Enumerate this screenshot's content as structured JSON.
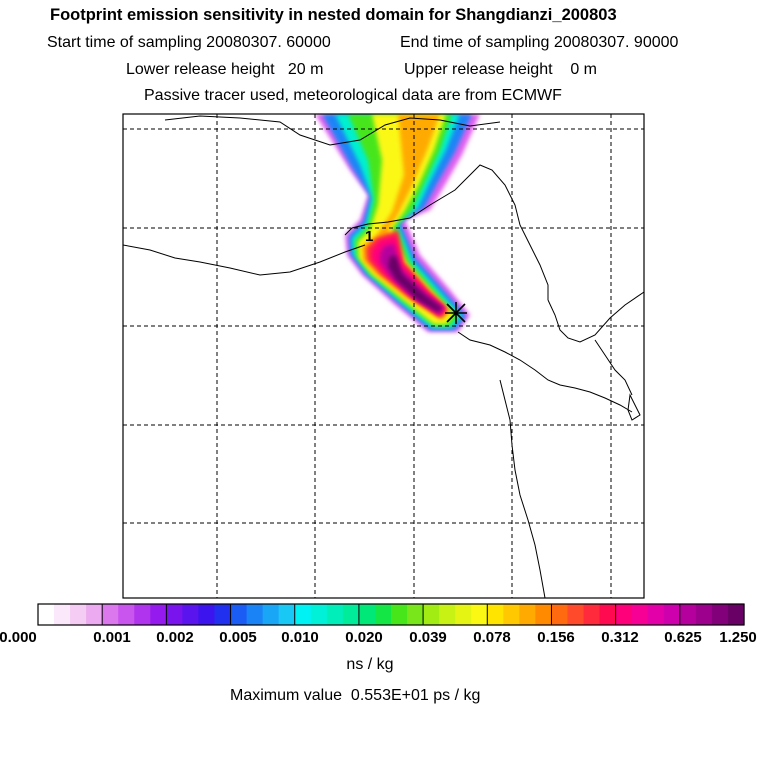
{
  "header": {
    "title": "Footprint emission sensitivity in nested domain for Shangdianzi_200803",
    "start": "Start time of sampling 20080307. 60000",
    "end": "End time of sampling 20080307. 90000",
    "lower": "Lower release height   20 m",
    "upper": "Upper release height    0 m",
    "tracer": "Passive tracer used, meteorological data are from ECMWF"
  },
  "map": {
    "release_label": "1"
  },
  "colorbar": {
    "ticks": [
      "0.000",
      "0.001",
      "0.002",
      "0.005",
      "0.010",
      "0.020",
      "0.039",
      "0.078",
      "0.156",
      "0.312",
      "0.625",
      "1.250"
    ],
    "colors": [
      "#ffffff",
      "#fbe8fb",
      "#f4ccf4",
      "#ecaaf0",
      "#dc78ee",
      "#c955ee",
      "#b033ee",
      "#951aee",
      "#7a14ee",
      "#5a14ee",
      "#3b14ee",
      "#2030ee",
      "#1a5cf4",
      "#1a84f6",
      "#1aa6f6",
      "#1ac8f6",
      "#00f2f4",
      "#00f0d8",
      "#00eeba",
      "#00ec9a",
      "#00e878",
      "#14e646",
      "#46e61a",
      "#78e61a",
      "#a2ec14",
      "#c8f214",
      "#e6f414",
      "#fbf814",
      "#ffe400",
      "#ffc800",
      "#ffaa00",
      "#ff8a00",
      "#ff6a10",
      "#ff4a2c",
      "#ff2a3c",
      "#ff0a50",
      "#ff007a",
      "#f60096",
      "#e400a8",
      "#ce00ae",
      "#b6009e",
      "#9c008c",
      "#82007a",
      "#680066"
    ],
    "unit": "ns / kg"
  },
  "footer": {
    "max_label": "Maximum value",
    "max_value": "0.553E+01 ps / kg"
  }
}
